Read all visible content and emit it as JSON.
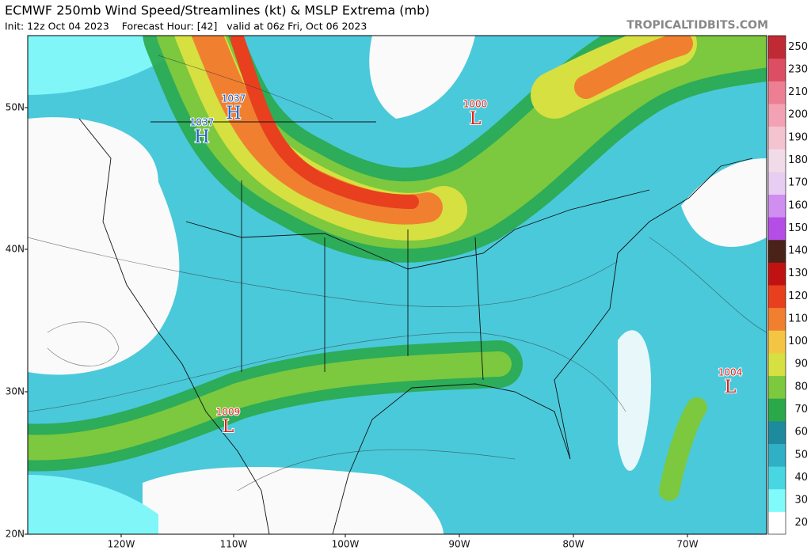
{
  "header": {
    "title": "ECMWF 250mb Wind Speed/Streamlines (kt) & MSLP Extrema (mb)",
    "subtitle": "Init: 12z Oct 04 2023    Forecast Hour: [42]   valid at 06z Fri, Oct 06 2023",
    "credit": "TROPICALTIDBITS.COM"
  },
  "map": {
    "lat_labels": [
      "50N",
      "40N",
      "30N",
      "20N"
    ],
    "lon_labels": [
      "120W",
      "110W",
      "100W",
      "90W",
      "80W",
      "70W"
    ],
    "centers": [
      {
        "symbol": "H",
        "pressure": "1037",
        "color": "#1f5fc8"
      },
      {
        "symbol": "H",
        "pressure": "1037",
        "color": "#1f5fc8"
      },
      {
        "symbol": "L",
        "pressure": "1000",
        "color": "#e0201a"
      },
      {
        "symbol": "L",
        "pressure": "1009",
        "color": "#e0201a"
      },
      {
        "symbol": "L",
        "pressure": "1004",
        "color": "#e0201a"
      }
    ]
  },
  "colorbar": {
    "levels": [
      {
        "label": "20",
        "color": "#ffffff"
      },
      {
        "label": "30",
        "color": "#80fbfb"
      },
      {
        "label": "40",
        "color": "#48d6e2"
      },
      {
        "label": "50",
        "color": "#2fb0c4"
      },
      {
        "label": "60",
        "color": "#1d8a9e"
      },
      {
        "label": "70",
        "color": "#2aa84a"
      },
      {
        "label": "80",
        "color": "#7cc83e"
      },
      {
        "label": "90",
        "color": "#d6e040"
      },
      {
        "label": "100",
        "color": "#f4c542"
      },
      {
        "label": "110",
        "color": "#f08030"
      },
      {
        "label": "120",
        "color": "#e8401e"
      },
      {
        "label": "130",
        "color": "#c01212"
      },
      {
        "label": "140",
        "color": "#4a2218"
      },
      {
        "label": "150",
        "color": "#b54ee6"
      },
      {
        "label": "160",
        "color": "#cf8ef0"
      },
      {
        "label": "170",
        "color": "#e8cdf2"
      },
      {
        "label": "180",
        "color": "#f2dbe9"
      },
      {
        "label": "190",
        "color": "#f4c3d0"
      },
      {
        "label": "200",
        "color": "#f2a2b2"
      },
      {
        "label": "210",
        "color": "#ec8092"
      },
      {
        "label": "230",
        "color": "#dc4e62"
      },
      {
        "label": "250",
        "color": "#c02a34"
      }
    ]
  }
}
